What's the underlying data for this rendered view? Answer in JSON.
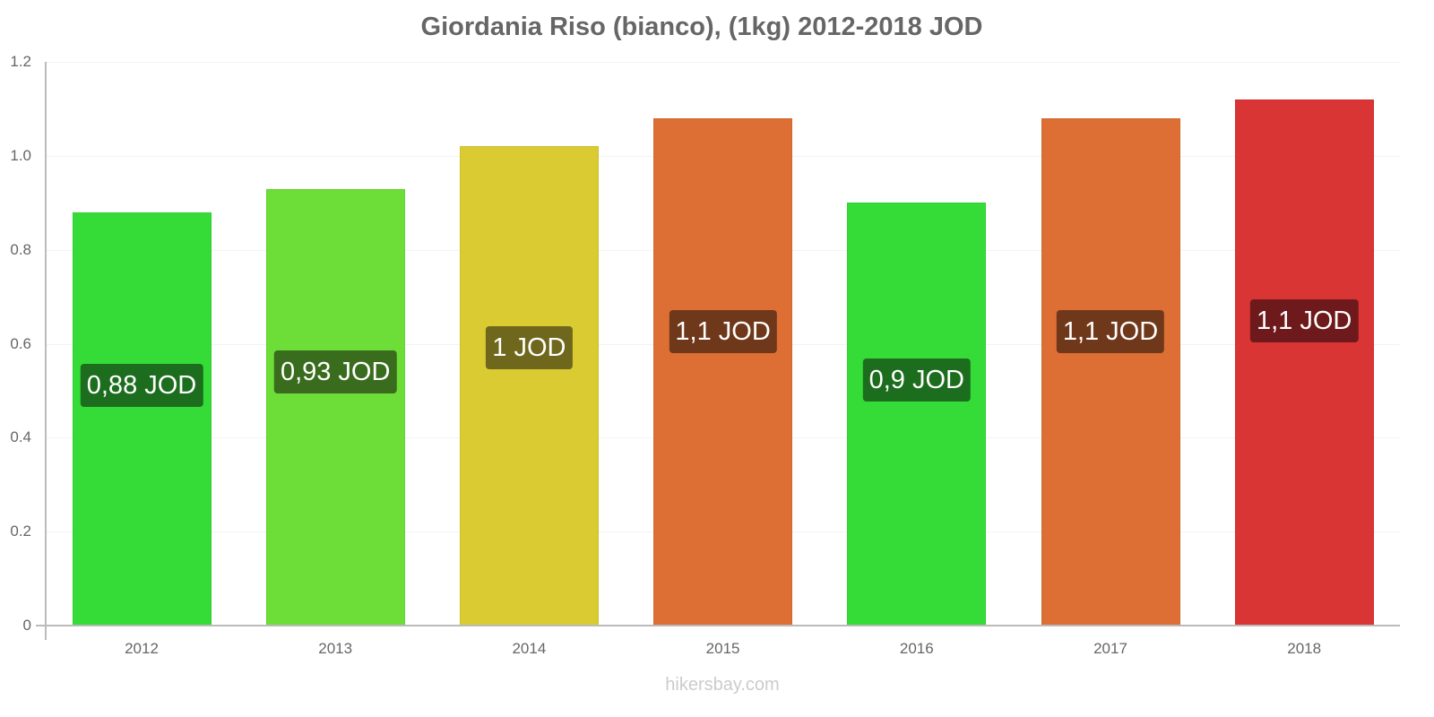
{
  "chart_data": {
    "type": "bar",
    "title": "Giordania Riso (bianco), (1kg) 2012-2018 JOD",
    "xlabel": "",
    "ylabel": "",
    "ylim": [
      0,
      1.2
    ],
    "yticks": [
      "0",
      "0.2",
      "0.4",
      "0.6",
      "0.8",
      "1.0",
      "1.2"
    ],
    "grid": true,
    "legend": "none",
    "categories": [
      "2012",
      "2013",
      "2014",
      "2015",
      "2016",
      "2017",
      "2018"
    ],
    "values": [
      0.88,
      0.93,
      1.02,
      1.08,
      0.9,
      1.08,
      1.12
    ],
    "data_labels": [
      "0,88 JOD",
      "0,93 JOD",
      "1 JOD",
      "1,1 JOD",
      "0,9 JOD",
      "1,1 JOD",
      "1,1 JOD"
    ],
    "bar_colors": [
      "#35dc37",
      "#6ddd37",
      "#dacb33",
      "#dd6f35",
      "#35dc37",
      "#dd6f35",
      "#da3535"
    ],
    "label_colors": [
      "#1c6d1e",
      "#3a6c1e",
      "#6f671c",
      "#70381b",
      "#1c6d1e",
      "#70381b",
      "#6e1a1c"
    ]
  },
  "watermark": "hikersbay.com"
}
